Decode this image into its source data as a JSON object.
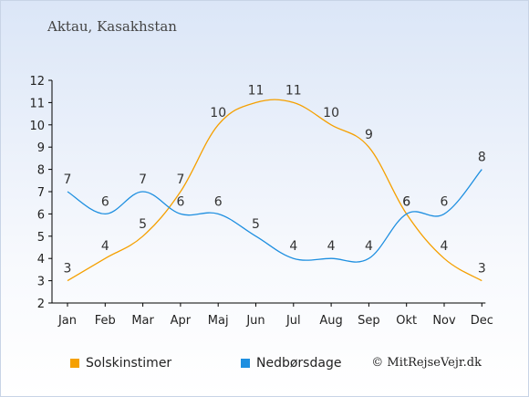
{
  "title": "Aktau, Kasakhstan",
  "credit": "© MitRejseVejr.dk",
  "legend": [
    {
      "label": "Solskinstimer",
      "color": "#f5a000"
    },
    {
      "label": "Nedbørsdage",
      "color": "#1e8fe0"
    }
  ],
  "chart_data": {
    "type": "line",
    "categories": [
      "Jan",
      "Feb",
      "Mar",
      "Apr",
      "Maj",
      "Jun",
      "Jul",
      "Aug",
      "Sep",
      "Okt",
      "Nov",
      "Dec"
    ],
    "ylim": [
      2,
      12
    ],
    "yticks": [
      2,
      3,
      4,
      5,
      6,
      7,
      8,
      9,
      10,
      11,
      12
    ],
    "grid": false,
    "legend_position": "bottom",
    "series": [
      {
        "name": "Solskinstimer",
        "color": "#f5a000",
        "values": [
          3,
          4,
          5,
          7,
          10,
          11,
          11,
          10,
          9,
          6,
          4,
          3
        ]
      },
      {
        "name": "Nedbørsdage",
        "color": "#1e8fe0",
        "values": [
          7,
          6,
          7,
          6,
          6,
          5,
          4,
          4,
          4,
          6,
          6,
          8
        ]
      }
    ]
  }
}
